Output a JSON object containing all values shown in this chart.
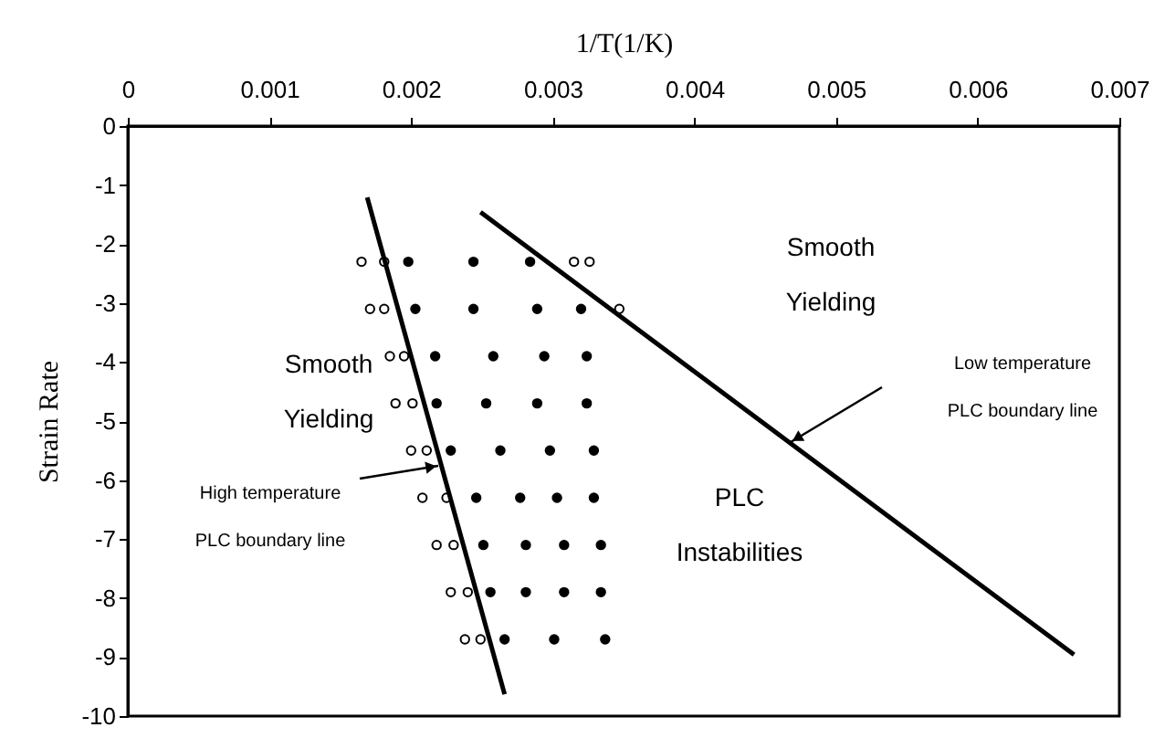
{
  "chart_data": {
    "type": "scatter",
    "xlabel": "1/T(1/K)",
    "ylabel": "Strain Rate",
    "xlim": [
      0,
      0.007
    ],
    "xticks": [
      0,
      0.001,
      0.002,
      0.003,
      0.004,
      0.005,
      0.006,
      0.007
    ],
    "ylim": [
      -10,
      0
    ],
    "yticks": [
      0,
      -1,
      -2,
      -3,
      -4,
      -5,
      -6,
      -7,
      -8,
      -9,
      -10
    ],
    "grid": false,
    "marker": "circle",
    "series": [
      {
        "color": "#ffffff",
        "x": [
          0.00165,
          0.00181,
          0.00315,
          0.00326,
          0.00171,
          0.00181,
          0.00347,
          0.00185,
          0.00195,
          0.00189,
          0.00201,
          0.002,
          0.00211,
          0.00208,
          0.00225,
          0.00218,
          0.0023,
          0.00228,
          0.0024,
          0.00238,
          0.00249
        ],
        "values": [
          -2.3,
          -2.3,
          -2.3,
          -2.3,
          -3.1,
          -3.1,
          -3.1,
          -3.9,
          -3.9,
          -4.7,
          -4.7,
          -5.5,
          -5.5,
          -6.3,
          -6.3,
          -7.1,
          -7.1,
          -7.9,
          -7.9,
          -8.7,
          -8.7
        ]
      },
      {
        "color": "#000000",
        "x": [
          0.00198,
          0.00244,
          0.00284,
          0.00203,
          0.00244,
          0.00289,
          0.0032,
          0.00217,
          0.00258,
          0.00294,
          0.00324,
          0.00218,
          0.00253,
          0.00289,
          0.00324,
          0.00228,
          0.00263,
          0.00298,
          0.00329,
          0.00246,
          0.00277,
          0.00303,
          0.00329,
          0.00251,
          0.00281,
          0.00308,
          0.00334,
          0.00256,
          0.00281,
          0.00308,
          0.00334,
          0.00266,
          0.00301,
          0.00337
        ],
        "values": [
          -2.3,
          -2.3,
          -2.3,
          -3.1,
          -3.1,
          -3.1,
          -3.1,
          -3.9,
          -3.9,
          -3.9,
          -3.9,
          -4.7,
          -4.7,
          -4.7,
          -4.7,
          -5.5,
          -5.5,
          -5.5,
          -5.5,
          -6.3,
          -6.3,
          -6.3,
          -6.3,
          -7.1,
          -7.1,
          -7.1,
          -7.1,
          -7.9,
          -7.9,
          -7.9,
          -7.9,
          -8.7,
          -8.7,
          -8.7
        ]
      },
      {
        "type": "line",
        "color": "#000000",
        "marker": "none",
        "line_style": "solid",
        "x": [
          0.00169,
          0.00266
        ],
        "values": [
          -1.21,
          -9.63
        ]
      },
      {
        "type": "line",
        "color": "#000000",
        "marker": "none",
        "line_style": "solid",
        "x": [
          0.00249,
          0.00668
        ],
        "values": [
          -1.46,
          -8.96
        ]
      }
    ],
    "annotations": [
      "Smooth\nYielding",
      "Smooth\nYielding",
      "PLC\nInstabilities",
      "High temperature\nPLC boundary line",
      "Low temperature\nPLC boundary line"
    ]
  }
}
